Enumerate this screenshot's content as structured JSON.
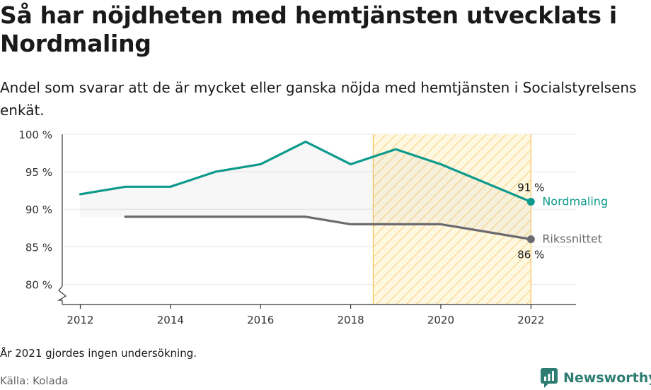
{
  "header": {
    "title": "Så har nöjdheten med hemtjänsten utvecklats i Nordmaling",
    "subtitle": "Andel som svarar att de är mycket eller ganska nöjda med hemtjänsten i Socialstyrelsens enkät."
  },
  "footer": {
    "note": "År 2021 gjordes ingen undersökning.",
    "source": "Källa: Kolada",
    "brand": "Newsworthy"
  },
  "chart_data": {
    "type": "line",
    "title": "Så har nöjdheten med hemtjänsten utvecklats i Nordmaling",
    "subtitle": "Andel som svarar att de är mycket eller ganska nöjda med hemtjänsten i Socialstyrelsens enkät.",
    "xlim": [
      2011.6,
      2023.0
    ],
    "ylim": [
      77.3,
      100
    ],
    "y_ticks": [
      80,
      85,
      90,
      95,
      100
    ],
    "y_tick_labels": [
      "80 %",
      "85 %",
      "90 %",
      "95 %",
      "100 %"
    ],
    "x_ticks": [
      2012,
      2014,
      2016,
      2018,
      2020,
      2022
    ],
    "x_tick_labels": [
      "2012",
      "2014",
      "2016",
      "2018",
      "2020",
      "2022"
    ],
    "axis_break": "y",
    "grid": "horizontal",
    "highlight_range": [
      2018.5,
      2022
    ],
    "series": [
      {
        "name": "Nordmaling",
        "color": "#0d9a8d",
        "x": [
          2012,
          2013,
          2014,
          2015,
          2016,
          2017,
          2018,
          2019,
          2020,
          2022
        ],
        "values": [
          92,
          93,
          93,
          95,
          96,
          99,
          96,
          98,
          96,
          91
        ],
        "end_label": "91 %"
      },
      {
        "name": "Rikssnittet",
        "color": "#6b6b6f",
        "x": [
          2013,
          2014,
          2015,
          2016,
          2017,
          2018,
          2019,
          2020,
          2022
        ],
        "values": [
          89,
          89,
          89,
          89,
          89,
          88,
          88,
          88,
          86
        ],
        "end_label": "86 %"
      }
    ]
  }
}
